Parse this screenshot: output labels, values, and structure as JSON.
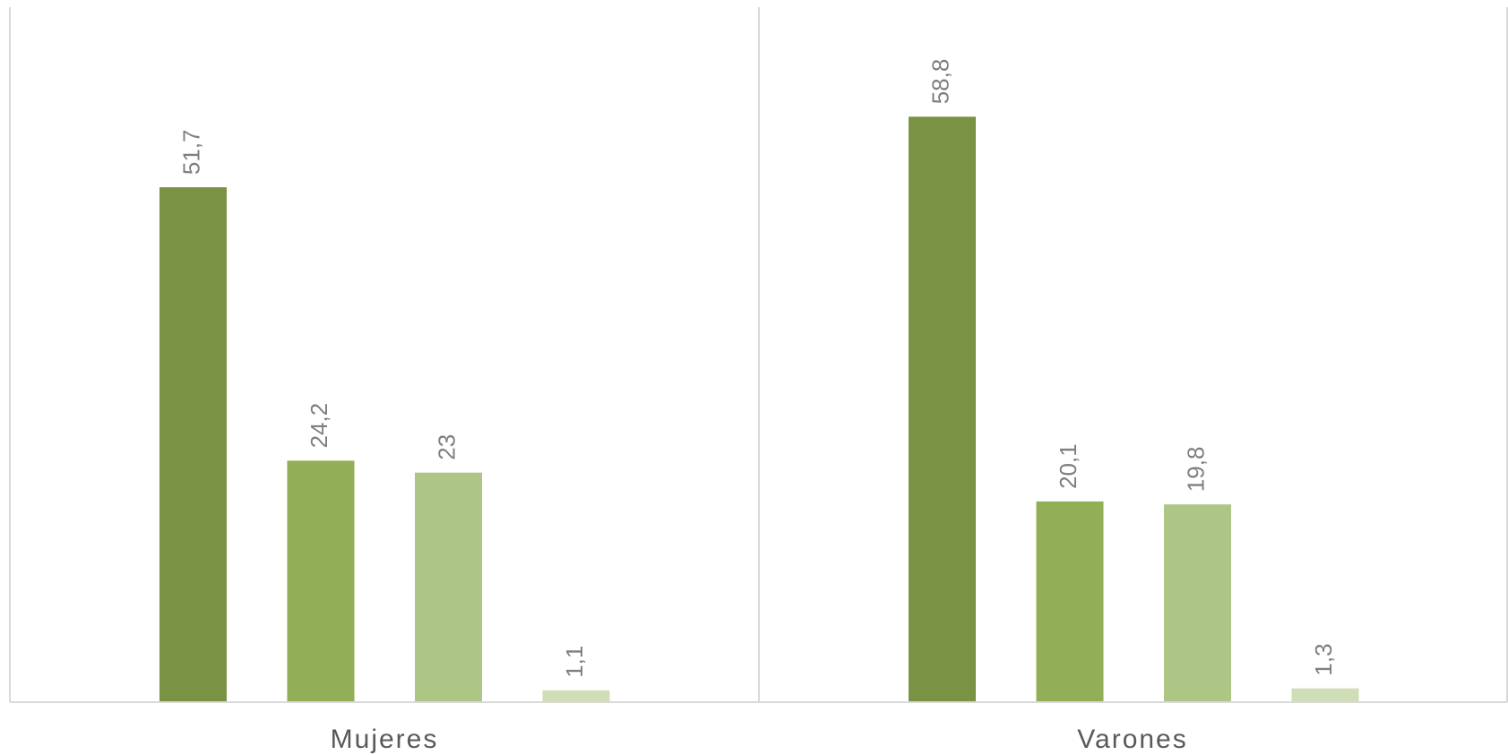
{
  "chart_data": {
    "type": "bar",
    "categories": [
      "Mujeres",
      "Varones"
    ],
    "series": [
      {
        "values": [
          51.7,
          58.8
        ],
        "value_labels": [
          "51,7",
          "58,8"
        ],
        "color": "#7a9243"
      },
      {
        "values": [
          24.2,
          20.1
        ],
        "value_labels": [
          "24,2",
          "20,1"
        ],
        "color": "#92ae56"
      },
      {
        "values": [
          23,
          19.8
        ],
        "value_labels": [
          "23",
          "19,8"
        ],
        "color": "#adc686"
      },
      {
        "values": [
          1.1,
          1.3
        ],
        "value_labels": [
          "1,1",
          "1,3"
        ],
        "color": "#cfdeb7"
      }
    ],
    "title": "",
    "xlabel": "",
    "ylabel": "",
    "ylim": [
      0,
      70
    ],
    "grid": false,
    "legend": "none",
    "data_labels": "rotated-above-bars"
  }
}
